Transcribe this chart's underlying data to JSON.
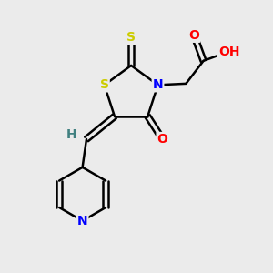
{
  "background_color": "#ebebeb",
  "atom_colors": {
    "S": "#cccc00",
    "N": "#0000ff",
    "O": "#ff0000",
    "H": "#408080",
    "C": "#000000"
  },
  "bond_color": "#000000",
  "bond_width": 1.8,
  "figsize": [
    3.0,
    3.0
  ],
  "dpi": 100,
  "xlim": [
    0,
    10
  ],
  "ylim": [
    0,
    10
  ]
}
